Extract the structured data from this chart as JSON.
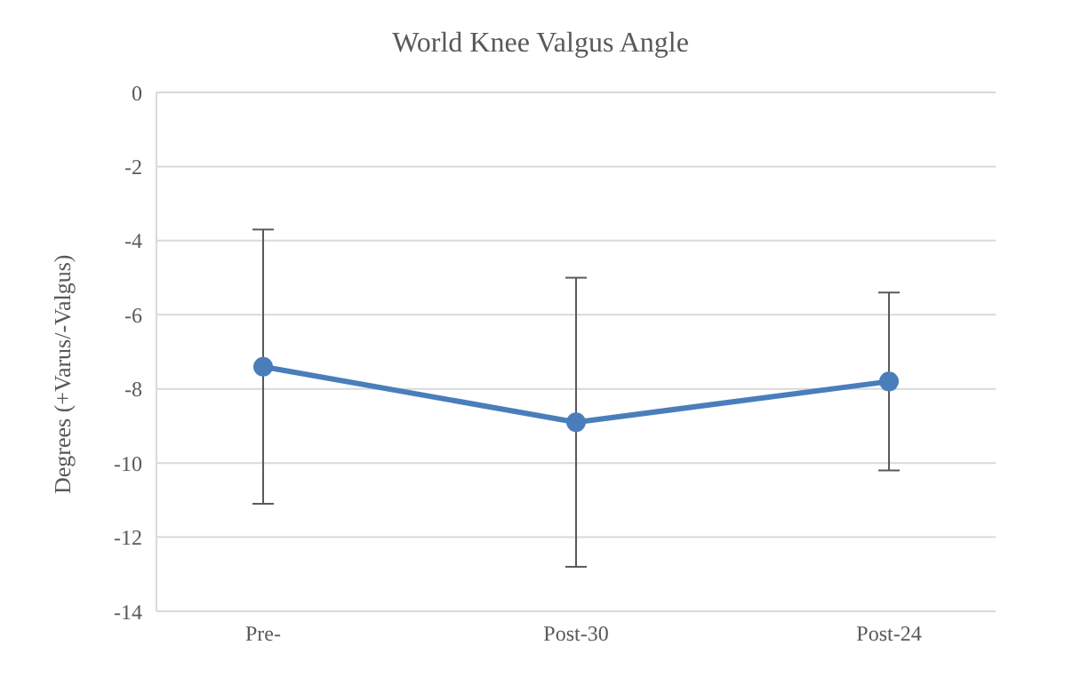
{
  "chart_data": {
    "type": "line",
    "title": "World Knee Valgus Angle",
    "ylabel": "Degrees (+Varus/-Valgus)",
    "categories": [
      "Pre-",
      "Post-30",
      "Post-24"
    ],
    "series": [
      {
        "color": "#4a7ebb",
        "values": [
          -7.4,
          -8.9,
          -7.8
        ],
        "errors": [
          3.7,
          3.9,
          2.4
        ]
      }
    ],
    "ylim": [
      -14,
      0
    ],
    "yticks": [
      -14,
      -12,
      -10,
      -8,
      -6,
      -4,
      -2,
      0
    ],
    "grid": "y",
    "marker": "circle",
    "line_style": "solid",
    "legend": false
  }
}
